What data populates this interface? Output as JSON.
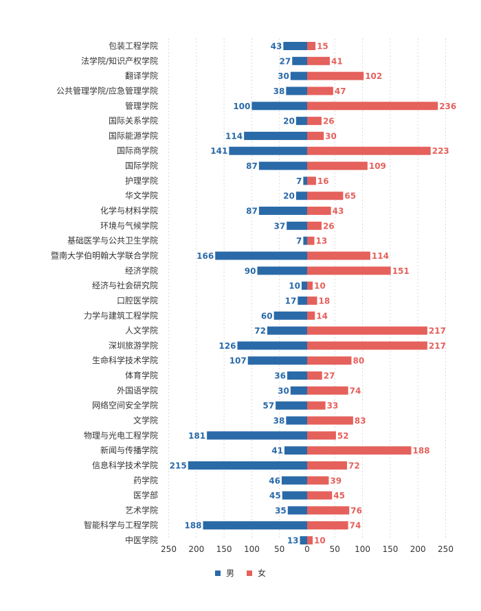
{
  "chart_data": {
    "type": "bar",
    "orientation": "horizontal-butterfly",
    "categories": [
      "包装工程学院",
      "法学院/知识产权学院",
      "翻译学院",
      "公共管理学院/应急管理学院",
      "管理学院",
      "国际关系学院",
      "国际能源学院",
      "国际商学院",
      "国际学院",
      "护理学院",
      "华文学院",
      "化学与材料学院",
      "环境与气候学院",
      "基础医学与公共卫生学院",
      "暨南大学伯明翰大学联合学院",
      "经济学院",
      "经济与社会研究院",
      "口腔医学院",
      "力学与建筑工程学院",
      "人文学院",
      "深圳旅游学院",
      "生命科学技术学院",
      "体育学院",
      "外国语学院",
      "网络空间安全学院",
      "文学院",
      "物理与光电工程学院",
      "新闻与传播学院",
      "信息科学技术学院",
      "药学院",
      "医学部",
      "艺术学院",
      "智能科学与工程学院",
      "中医学院"
    ],
    "series": [
      {
        "name": "男",
        "color": "#2a6aa8",
        "values": [
          43,
          27,
          30,
          38,
          100,
          20,
          114,
          141,
          87,
          7,
          20,
          87,
          37,
          7,
          166,
          90,
          10,
          17,
          60,
          72,
          126,
          107,
          36,
          30,
          57,
          38,
          181,
          41,
          215,
          46,
          45,
          35,
          188,
          13
        ]
      },
      {
        "name": "女",
        "color": "#e5615c",
        "values": [
          15,
          41,
          102,
          47,
          236,
          26,
          30,
          223,
          109,
          16,
          65,
          43,
          26,
          13,
          114,
          151,
          10,
          18,
          14,
          217,
          217,
          80,
          27,
          74,
          33,
          83,
          52,
          188,
          72,
          39,
          45,
          76,
          74,
          10
        ]
      }
    ],
    "xlim": [
      -250,
      250
    ],
    "x_ticks": [
      "250",
      "200",
      "150",
      "100",
      "50",
      "0",
      "50",
      "100",
      "150",
      "200",
      "250"
    ],
    "grid": "vertical-dashed",
    "legend": "bottom-center"
  }
}
